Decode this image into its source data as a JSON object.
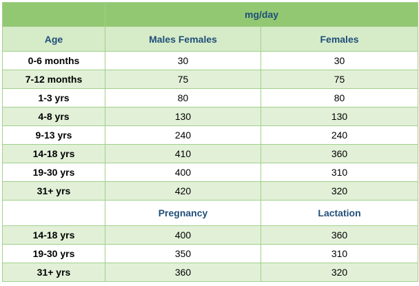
{
  "header": {
    "title": "mg/day"
  },
  "table": {
    "columns": [
      "Age",
      "Males Females",
      "Females"
    ],
    "rows": [
      [
        "0-6 months",
        30,
        30
      ],
      [
        "7-12 months",
        75,
        75
      ],
      [
        "1-3 yrs",
        80,
        80
      ],
      [
        "4-8 yrs",
        130,
        130
      ],
      [
        "9-13 yrs",
        240,
        240
      ],
      [
        "14-18 yrs",
        410,
        360
      ],
      [
        "19-30 yrs",
        400,
        310
      ],
      [
        "31+ yrs",
        420,
        320
      ]
    ]
  },
  "pregnancy_table": {
    "columns": [
      "Pregnancy",
      "Lactation"
    ],
    "rows": [
      [
        "14-18 yrs",
        400,
        360
      ],
      [
        "19-30 yrs",
        350,
        310
      ],
      [
        "31+ yrs",
        360,
        320
      ]
    ]
  }
}
